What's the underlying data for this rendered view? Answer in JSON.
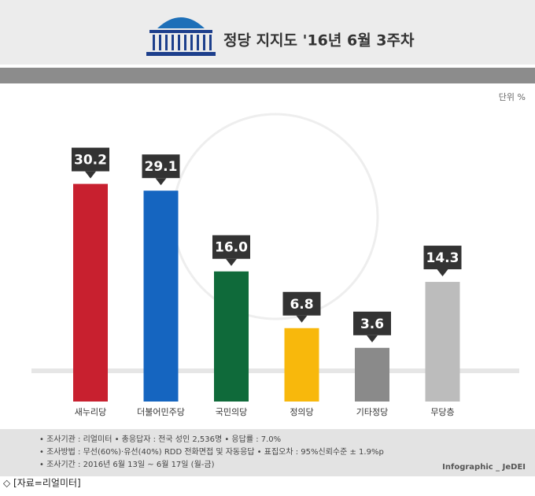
{
  "chart_data": {
    "type": "bar",
    "title": "정당 지지도 '16년 6월 3주차",
    "unit": "단위 %",
    "categories": [
      "새누리당",
      "더불어민주당",
      "국민의당",
      "정의당",
      "기타정당",
      "무당층"
    ],
    "values": [
      30.2,
      29.1,
      16.0,
      6.8,
      3.6,
      14.3
    ],
    "value_labels": [
      "30.2",
      "29.1",
      "16.0",
      "6.8",
      "3.6",
      "14.3"
    ],
    "colors": [
      "#c8202f",
      "#1565c0",
      "#0f6a3a",
      "#f8b80c",
      "#8a8a8a",
      "#bcbcbc"
    ],
    "ylim": [
      0,
      35
    ],
    "notes": [
      "• 조사기관 : 리얼미터    • 총응답자 : 전국 성인 2,536명    • 응답률 : 7.0%",
      "• 조사방법 : 무선(60%)·유선(40%) RDD 전화면접 및 자동응답    • 표집오차 : 95%신뢰수준 ± 1.9%p",
      "• 조사기간 :  2016년 6월 13일 ~ 6월 17일 (월-금)"
    ],
    "credit": "Infographic _ JeDEI",
    "source": "◇ [자료=리얼미터]"
  }
}
